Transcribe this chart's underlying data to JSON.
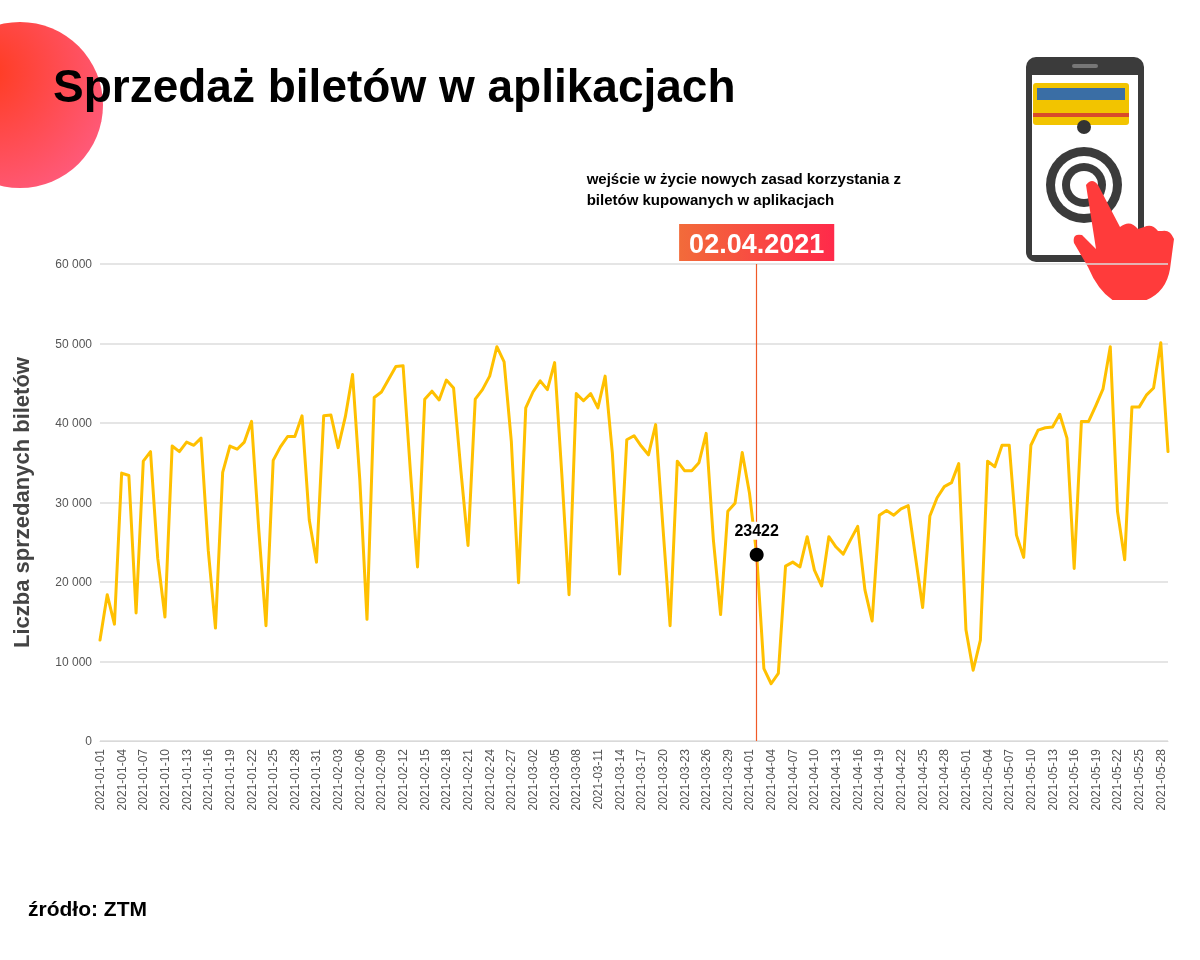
{
  "chart_data": {
    "type": "line",
    "title": "Sprzedaż biletów w aplikacjach",
    "ylabel": "Liczba sprzedanych biletów",
    "x": [
      "2021-01-01",
      "2021-01-02",
      "2021-01-03",
      "2021-01-04",
      "2021-01-05",
      "2021-01-06",
      "2021-01-07",
      "2021-01-08",
      "2021-01-09",
      "2021-01-10",
      "2021-01-11",
      "2021-01-12",
      "2021-01-13",
      "2021-01-14",
      "2021-01-15",
      "2021-01-16",
      "2021-01-17",
      "2021-01-18",
      "2021-01-19",
      "2021-01-20",
      "2021-01-21",
      "2021-01-22",
      "2021-01-23",
      "2021-01-24",
      "2021-01-25",
      "2021-01-26",
      "2021-01-27",
      "2021-01-28",
      "2021-01-29",
      "2021-01-30",
      "2021-01-31",
      "2021-02-01",
      "2021-02-02",
      "2021-02-03",
      "2021-02-04",
      "2021-02-05",
      "2021-02-06",
      "2021-02-07",
      "2021-02-08",
      "2021-02-09",
      "2021-02-10",
      "2021-02-11",
      "2021-02-12",
      "2021-02-13",
      "2021-02-14",
      "2021-02-15",
      "2021-02-16",
      "2021-02-17",
      "2021-02-18",
      "2021-02-19",
      "2021-02-20",
      "2021-02-21",
      "2021-02-22",
      "2021-02-23",
      "2021-02-24",
      "2021-02-25",
      "2021-02-26",
      "2021-02-27",
      "2021-02-28",
      "2021-03-01",
      "2021-03-02",
      "2021-03-03",
      "2021-03-04",
      "2021-03-05",
      "2021-03-06",
      "2021-03-07",
      "2021-03-08",
      "2021-03-09",
      "2021-03-10",
      "2021-03-11",
      "2021-03-12",
      "2021-03-13",
      "2021-03-14",
      "2021-03-15",
      "2021-03-16",
      "2021-03-17",
      "2021-03-18",
      "2021-03-19",
      "2021-03-20",
      "2021-03-21",
      "2021-03-22",
      "2021-03-23",
      "2021-03-24",
      "2021-03-25",
      "2021-03-26",
      "2021-03-27",
      "2021-03-28",
      "2021-03-29",
      "2021-03-30",
      "2021-03-31",
      "2021-04-01",
      "2021-04-02",
      "2021-04-03",
      "2021-04-04",
      "2021-04-05",
      "2021-04-06",
      "2021-04-07",
      "2021-04-08",
      "2021-04-09",
      "2021-04-10",
      "2021-04-11",
      "2021-04-12",
      "2021-04-13",
      "2021-04-14",
      "2021-04-15",
      "2021-04-16",
      "2021-04-17",
      "2021-04-18",
      "2021-04-19",
      "2021-04-20",
      "2021-04-21",
      "2021-04-22",
      "2021-04-23",
      "2021-04-24",
      "2021-04-25",
      "2021-04-26",
      "2021-04-27",
      "2021-04-28",
      "2021-04-29",
      "2021-04-30",
      "2021-05-01",
      "2021-05-02",
      "2021-05-03",
      "2021-05-04",
      "2021-05-05",
      "2021-05-06",
      "2021-05-07",
      "2021-05-08",
      "2021-05-09",
      "2021-05-10",
      "2021-05-11",
      "2021-05-12",
      "2021-05-13",
      "2021-05-14",
      "2021-05-15",
      "2021-05-16",
      "2021-05-17",
      "2021-05-18",
      "2021-05-19",
      "2021-05-20",
      "2021-05-21",
      "2021-05-22",
      "2021-05-23",
      "2021-05-24",
      "2021-05-25",
      "2021-05-26",
      "2021-05-27",
      "2021-05-28",
      "2021-05-29"
    ],
    "series": [
      {
        "color": "#ffc000",
        "values": [
          12700,
          18400,
          14700,
          33700,
          33400,
          16100,
          35200,
          36400,
          23000,
          15600,
          37100,
          36400,
          37600,
          37200,
          38100,
          24000,
          14200,
          33800,
          37100,
          36700,
          37600,
          40200,
          26600,
          14500,
          35300,
          37000,
          38300,
          38300,
          40900,
          27800,
          22500,
          40900,
          41000,
          36900,
          40800,
          46100,
          32900,
          15300,
          43200,
          43900,
          45500,
          47100,
          47200,
          34100,
          21900,
          43000,
          44000,
          42900,
          45400,
          44400,
          34100,
          24600,
          43000,
          44200,
          45900,
          49600,
          47700,
          37700,
          19900,
          41900,
          43900,
          45300,
          44200,
          47600,
          33500,
          18400,
          43700,
          42800,
          43700,
          41900,
          45900,
          36200,
          21000,
          37900,
          38400,
          37100,
          36000,
          39800,
          27000,
          14500,
          35200,
          34000,
          34000,
          35000,
          38700,
          25300,
          15900,
          28900,
          29900,
          36300,
          31200,
          23422,
          9100,
          7200,
          8500,
          22000,
          22500,
          21900,
          25700,
          21500,
          19500,
          25700,
          24400,
          23500,
          25300,
          27000,
          19000,
          15100,
          28400,
          29000,
          28400,
          29200,
          29600,
          23200,
          16800,
          28300,
          30600,
          32000,
          32500,
          34900,
          14000,
          8900,
          12700,
          35200,
          34500,
          37200,
          37200,
          25900,
          23100,
          37200,
          39100,
          39400,
          39500,
          41100,
          38100,
          21700,
          40200,
          40200,
          42200,
          44300,
          49600,
          28900,
          22800,
          42000,
          42000,
          43500,
          44400,
          50100,
          36400
        ]
      }
    ],
    "xlim": [
      "2021-01-01",
      "2021-05-29"
    ],
    "xticks": [
      "2021-01-01",
      "2021-01-04",
      "2021-01-07",
      "2021-01-10",
      "2021-01-13",
      "2021-01-16",
      "2021-01-19",
      "2021-01-22",
      "2021-01-25",
      "2021-01-28",
      "2021-01-31",
      "2021-02-03",
      "2021-02-06",
      "2021-02-09",
      "2021-02-12",
      "2021-02-15",
      "2021-02-18",
      "2021-02-21",
      "2021-02-24",
      "2021-02-27",
      "2021-03-02",
      "2021-03-05",
      "2021-03-08",
      "2021-03-11",
      "2021-03-14",
      "2021-03-17",
      "2021-03-20",
      "2021-03-23",
      "2021-03-26",
      "2021-03-29",
      "2021-04-01",
      "2021-04-04",
      "2021-04-07",
      "2021-04-10",
      "2021-04-13",
      "2021-04-16",
      "2021-04-19",
      "2021-04-22",
      "2021-04-25",
      "2021-04-28",
      "2021-05-01",
      "2021-05-04",
      "2021-05-07",
      "2021-05-10",
      "2021-05-13",
      "2021-05-16",
      "2021-05-19",
      "2021-05-22",
      "2021-05-25",
      "2021-05-28"
    ],
    "ylim": [
      0,
      60000
    ],
    "yticks": [
      0,
      {
        "value": 10000,
        "label": "10 000"
      },
      {
        "value": 20000,
        "label": "20 000"
      },
      {
        "value": 30000,
        "label": "30 000"
      },
      {
        "value": 40000,
        "label": "40 000"
      },
      {
        "value": 50000,
        "label": "50 000"
      },
      {
        "value": 60000,
        "label": "60 000"
      }
    ],
    "grid": "y",
    "marker": "none",
    "line_style": "solid",
    "ref_lines": [
      {
        "axis": "x",
        "value": "2021-04-02",
        "label": "02.04.2021",
        "color": "#f05a28"
      }
    ],
    "annotations": [
      "wejście w życie nowych zasad korzystania z biletów kupowanych w aplikacjach",
      {
        "text": "23422",
        "x": "2021-04-02",
        "y": 23422
      },
      "źródło: ZTM"
    ]
  }
}
